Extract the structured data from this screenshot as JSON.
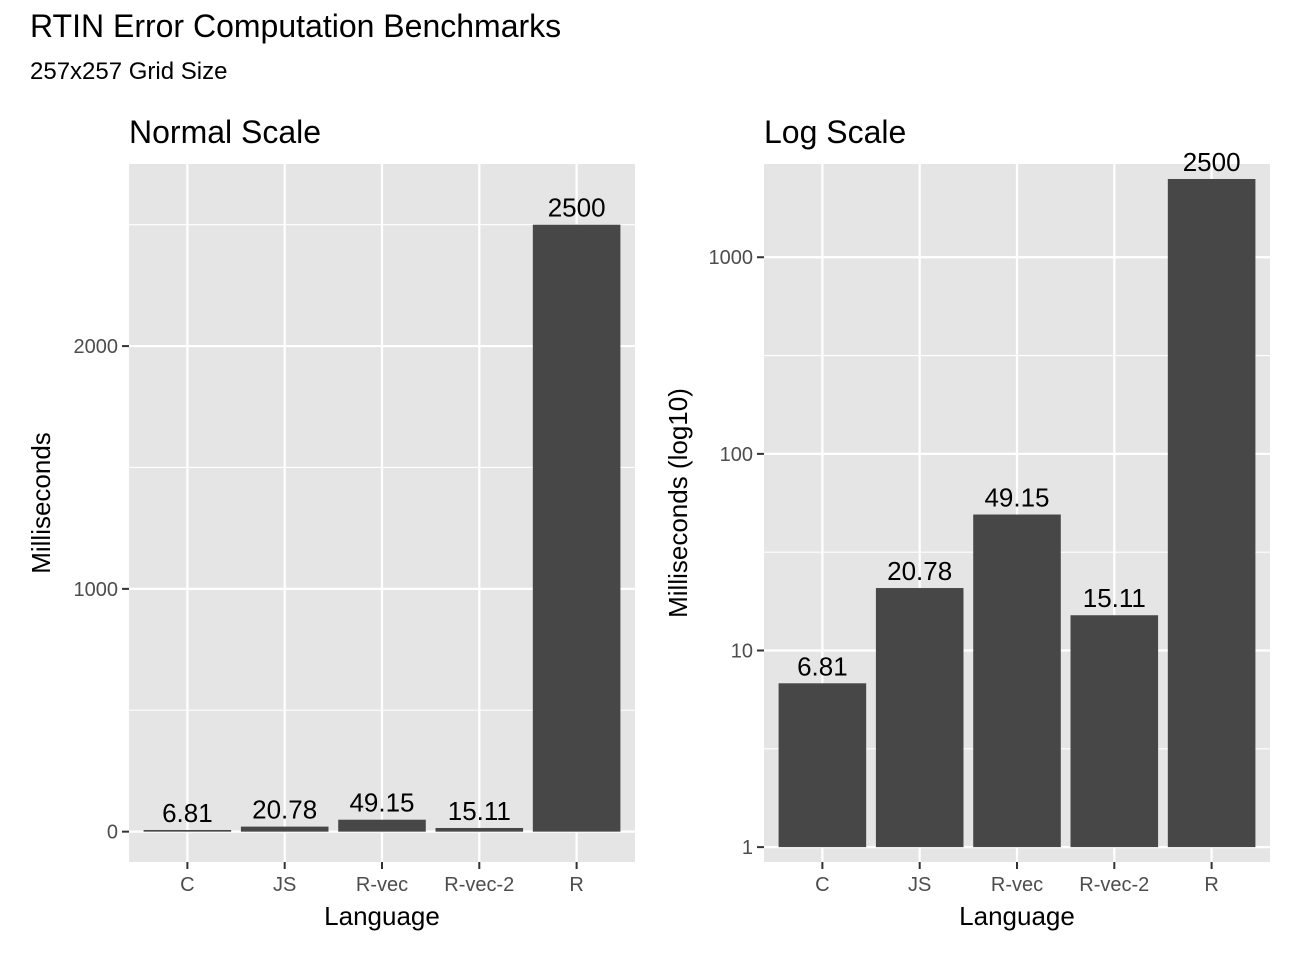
{
  "title": "RTIN Error Computation Benchmarks",
  "subtitle": "257x257 Grid Size",
  "chart_data": [
    {
      "type": "bar",
      "title": "Normal Scale",
      "xlabel": "Language",
      "ylabel": "Milliseconds",
      "categories": [
        "C",
        "JS",
        "R-vec",
        "R-vec-2",
        "R"
      ],
      "values": [
        6.81,
        20.78,
        49.15,
        15.11,
        2500
      ],
      "data_labels": [
        "6.81",
        "20.78",
        "49.15",
        "15.11",
        "2500"
      ],
      "y_scale": "linear",
      "ylim": [
        -125,
        2750
      ],
      "y_ticks": [
        0,
        1000,
        2000
      ],
      "y_tick_labels": [
        "0",
        "1000",
        "2000"
      ],
      "y_minor_ticks": [
        500,
        1500,
        2500
      ],
      "grid": true,
      "bar_color": "#474747",
      "panel_color": "#e5e5e5"
    },
    {
      "type": "bar",
      "title": "Log Scale",
      "xlabel": "Language",
      "ylabel": "Milliseconds (log10)",
      "categories": [
        "C",
        "JS",
        "R-vec",
        "R-vec-2",
        "R"
      ],
      "values": [
        6.81,
        20.78,
        49.15,
        15.11,
        2500
      ],
      "data_labels": [
        "6.81",
        "20.78",
        "49.15",
        "15.11",
        "2500"
      ],
      "y_scale": "log10",
      "ylim": [
        0.84,
        2980
      ],
      "y_ticks": [
        1,
        10,
        100,
        1000
      ],
      "y_tick_labels": [
        "1",
        "10",
        "100",
        "1000"
      ],
      "y_minor_ticks": [
        3.162,
        31.62,
        316.2,
        3162
      ],
      "grid": true,
      "bar_color": "#474747",
      "panel_color": "#e5e5e5"
    }
  ]
}
